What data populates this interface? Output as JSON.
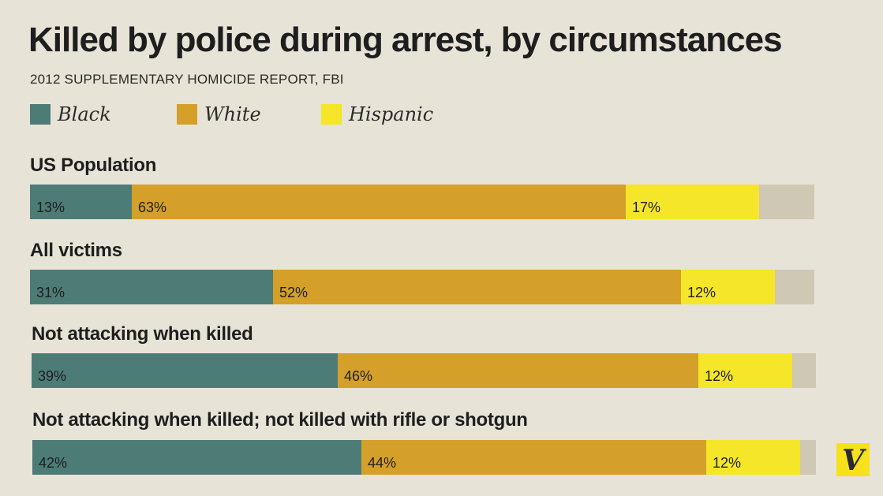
{
  "chart_data": {
    "type": "bar",
    "orientation": "horizontal",
    "stacked": true,
    "title": "Killed by police during arrest, by circumstances",
    "subtitle": "2012 SUPPLEMENTARY HOMICIDE REPORT, FBI",
    "legend_placement": "top-left",
    "categories": [
      "US Population",
      "All victims",
      "Not attacking when killed",
      "Not attacking when killed; not killed with rifle or shotgun"
    ],
    "series": [
      {
        "name": "Black",
        "color": "#4d7c77",
        "values": [
          13,
          31,
          39,
          42
        ],
        "labels": [
          "13%",
          "31%",
          "39%",
          "42%"
        ]
      },
      {
        "name": "White",
        "color": "#d4a029",
        "values": [
          63,
          52,
          46,
          44
        ],
        "labels": [
          "63%",
          "52%",
          "46%",
          "44%"
        ]
      },
      {
        "name": "Hispanic",
        "color": "#f5e62a",
        "values": [
          17,
          12,
          12,
          12
        ],
        "labels": [
          "17%",
          "12%",
          "12%",
          "12%"
        ]
      }
    ],
    "remainder_color": "#cfc8b4",
    "xlim": [
      0,
      100
    ]
  },
  "logo": {
    "text": "V",
    "name": "vox-logo"
  }
}
